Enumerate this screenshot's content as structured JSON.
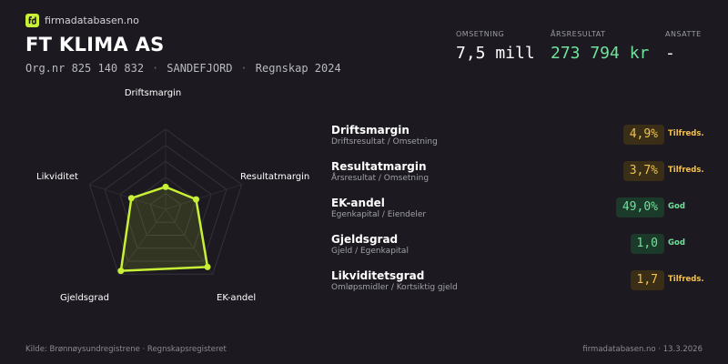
{
  "brand": {
    "name": "firmadatabasen.no"
  },
  "company": {
    "name": "FT KLIMA AS",
    "orgnr": "Org.nr 825 140 832",
    "city": "SANDEFJORD",
    "period": "Regnskap 2024",
    "separator": "·"
  },
  "stats": {
    "omsetning": {
      "label": "OMSETNING",
      "value": "7,5 mill"
    },
    "arsresultat": {
      "label": "ÅRSRESULTAT",
      "value": "273 794 kr",
      "color": "#6fe29b"
    },
    "ansatte": {
      "label": "ANSATTE",
      "value": "-"
    }
  },
  "radar": {
    "axes": [
      "Driftsmargin",
      "Resultatmargin",
      "EK-andel",
      "Gjeldsgrad",
      "Likviditet"
    ],
    "scores": [
      0.28,
      0.4,
      0.89,
      0.95,
      0.45
    ],
    "line_color": "#c7f036"
  },
  "metrics": [
    {
      "name": "Driftsmargin",
      "sub": "Driftsresultat / Omsetning",
      "value": "4,9%",
      "status": "Tilfreds.",
      "level": "warn"
    },
    {
      "name": "Resultatmargin",
      "sub": "Årsresultat / Omsetning",
      "value": "3,7%",
      "status": "Tilfreds.",
      "level": "warn"
    },
    {
      "name": "EK-andel",
      "sub": "Egenkapital / Eiendeler",
      "value": "49,0%",
      "status": "God",
      "level": "good"
    },
    {
      "name": "Gjeldsgrad",
      "sub": "Gjeld / Egenkapital",
      "value": "1,0",
      "status": "God",
      "level": "good"
    },
    {
      "name": "Likviditetsgrad",
      "sub": "Omløpsmidler / Kortsiktig gjeld",
      "value": "1,7",
      "status": "Tilfreds.",
      "level": "warn"
    }
  ],
  "footer": {
    "source": "Kilde: Brønnøysundregistrene · Regnskapsregisteret",
    "site": "firmadatabasen.no · 13.3.2026"
  }
}
